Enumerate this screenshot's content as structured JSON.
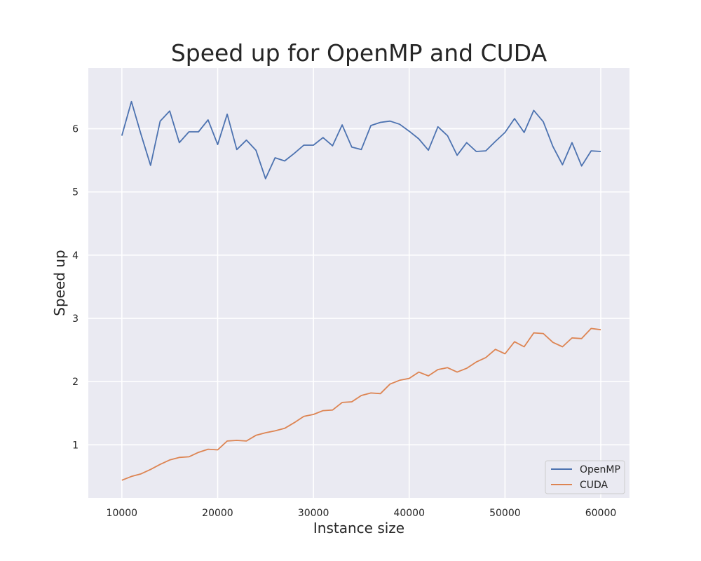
{
  "chart_data": {
    "type": "line",
    "title": "Speed up for OpenMP and CUDA",
    "xlabel": "Instance size",
    "ylabel": "Speed up",
    "xlim": [
      6500,
      63000
    ],
    "ylim": [
      0.16,
      6.96
    ],
    "xticks": [
      10000,
      20000,
      30000,
      40000,
      50000,
      60000
    ],
    "yticks": [
      1,
      2,
      3,
      4,
      5,
      6
    ],
    "grid": true,
    "legend_position": "lower-right",
    "x": [
      10000,
      11000,
      12000,
      13000,
      14000,
      15000,
      16000,
      17000,
      18000,
      19000,
      20000,
      21000,
      22000,
      23000,
      24000,
      25000,
      26000,
      27000,
      28000,
      29000,
      30000,
      31000,
      32000,
      33000,
      34000,
      35000,
      36000,
      37000,
      38000,
      39000,
      40000,
      41000,
      42000,
      43000,
      44000,
      45000,
      46000,
      47000,
      48000,
      49000,
      50000,
      51000,
      52000,
      53000,
      54000,
      55000,
      56000,
      57000,
      58000,
      59000,
      60000
    ],
    "series": [
      {
        "name": "OpenMP",
        "color": "#4c72b0",
        "values": [
          5.89,
          6.43,
          5.91,
          5.42,
          6.12,
          6.28,
          5.78,
          5.95,
          5.95,
          6.14,
          5.75,
          6.23,
          5.67,
          5.82,
          5.66,
          5.21,
          5.54,
          5.49,
          5.61,
          5.74,
          5.74,
          5.86,
          5.73,
          6.06,
          5.71,
          5.67,
          6.05,
          6.1,
          6.12,
          6.07,
          5.96,
          5.84,
          5.66,
          6.03,
          5.89,
          5.58,
          5.78,
          5.64,
          5.65,
          5.8,
          5.94,
          6.16,
          5.94,
          6.29,
          6.11,
          5.72,
          5.43,
          5.78,
          5.41,
          5.65,
          5.64
        ]
      },
      {
        "name": "CUDA",
        "color": "#dd8452",
        "values": [
          0.44,
          0.5,
          0.54,
          0.61,
          0.69,
          0.76,
          0.8,
          0.81,
          0.88,
          0.93,
          0.92,
          1.06,
          1.07,
          1.06,
          1.15,
          1.19,
          1.22,
          1.26,
          1.35,
          1.45,
          1.48,
          1.54,
          1.55,
          1.67,
          1.68,
          1.78,
          1.82,
          1.81,
          1.96,
          2.02,
          2.05,
          2.15,
          2.09,
          2.19,
          2.22,
          2.15,
          2.21,
          2.31,
          2.38,
          2.51,
          2.44,
          2.63,
          2.55,
          2.77,
          2.76,
          2.62,
          2.55,
          2.69,
          2.68,
          2.84,
          2.82
        ]
      }
    ]
  }
}
